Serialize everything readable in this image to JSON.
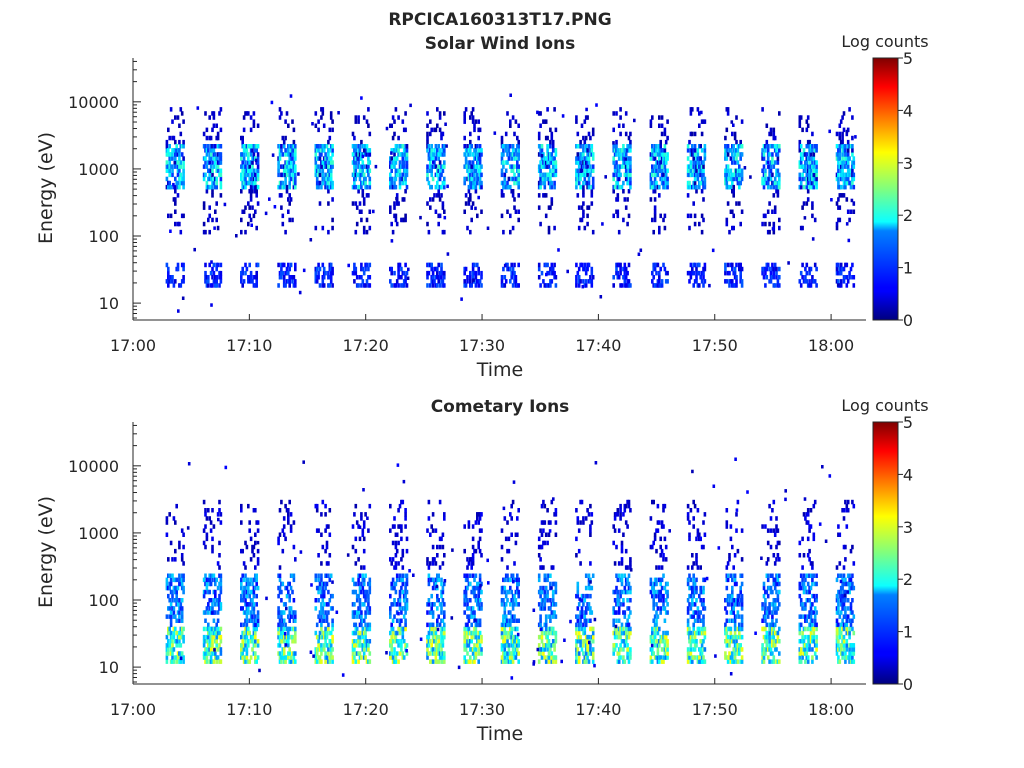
{
  "figure": {
    "title": "RPCICA160313T17.PNG"
  },
  "chart_data": [
    {
      "type": "heatmap",
      "title": "Solar Wind Ions",
      "xlabel": "Time",
      "ylabel": "Energy (eV)",
      "x_range": [
        "17:00",
        "18:03"
      ],
      "x_ticks": [
        "17:00",
        "17:10",
        "17:20",
        "17:30",
        "17:40",
        "17:50",
        "18:00"
      ],
      "y_scale": "log",
      "y_range": [
        5.6,
        45000
      ],
      "y_ticks": [
        "10",
        "100",
        "1000",
        "10000"
      ],
      "y_tick_values": [
        10,
        100,
        1000,
        10000
      ],
      "colorbar": {
        "title": "Log counts",
        "ticks": [
          "0",
          "1",
          "2",
          "3",
          "4",
          "5"
        ],
        "range": [
          0,
          5
        ],
        "colormap": "jet"
      },
      "grid": false,
      "scan_times_min": [
        2.8,
        6.0,
        9.2,
        12.4,
        15.6,
        18.8,
        22.0,
        25.2,
        28.4,
        31.6,
        34.8,
        38.0,
        41.2,
        44.4,
        47.6,
        50.8,
        54.0,
        57.2,
        60.4
      ],
      "bands": [
        {
          "energy_low_eV": 500,
          "energy_high_eV": 2500,
          "level_log_counts": 1.8,
          "description": "main solar wind peak"
        },
        {
          "energy_low_eV": 18,
          "energy_high_eV": 40,
          "level_log_counts": 0.9
        },
        {
          "energy_low_eV": 100,
          "energy_high_eV": 8000,
          "level_log_counts": 0.4,
          "description": "sparse counts"
        }
      ]
    },
    {
      "type": "heatmap",
      "title": "Cometary Ions",
      "xlabel": "Time",
      "ylabel": "Energy (eV)",
      "x_range": [
        "17:00",
        "18:03"
      ],
      "x_ticks": [
        "17:00",
        "17:10",
        "17:20",
        "17:30",
        "17:40",
        "17:50",
        "18:00"
      ],
      "y_scale": "log",
      "y_range": [
        5.6,
        45000
      ],
      "y_ticks": [
        "10",
        "100",
        "1000",
        "10000"
      ],
      "y_tick_values": [
        10,
        100,
        1000,
        10000
      ],
      "colorbar": {
        "title": "Log counts",
        "ticks": [
          "0",
          "1",
          "2",
          "3",
          "4",
          "5"
        ],
        "range": [
          0,
          5
        ],
        "colormap": "jet"
      },
      "grid": false,
      "scan_times_min": [
        2.8,
        6.0,
        9.2,
        12.4,
        15.6,
        18.8,
        22.0,
        25.2,
        28.4,
        31.6,
        34.8,
        38.0,
        41.2,
        44.4,
        47.6,
        50.8,
        54.0,
        57.2,
        60.4
      ],
      "bands": [
        {
          "energy_low_eV": 12,
          "energy_high_eV": 40,
          "level_log_counts": 2.6,
          "description": "main cometary ion peak"
        },
        {
          "energy_low_eV": 40,
          "energy_high_eV": 250,
          "level_log_counts": 1.4
        },
        {
          "energy_low_eV": 300,
          "energy_high_eV": 3000,
          "level_log_counts": 0.5,
          "description": "sparse counts"
        }
      ]
    }
  ]
}
